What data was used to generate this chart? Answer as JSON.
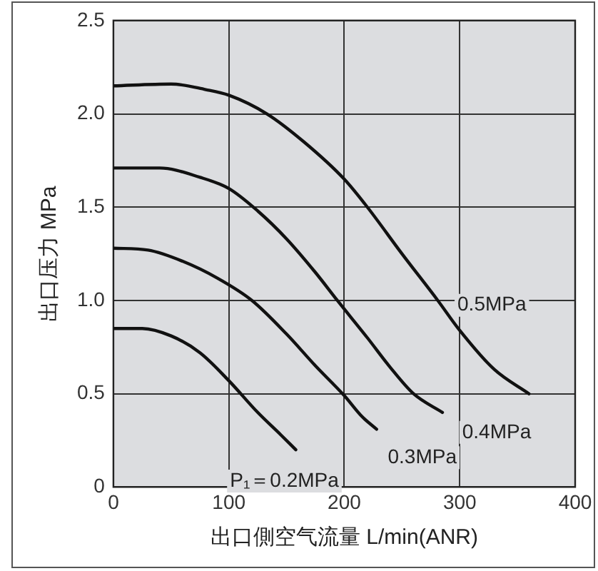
{
  "chart_data": {
    "type": "line",
    "xlabel": "出口側空气流量 L/min(ANR)",
    "ylabel": "出口压力 MPa",
    "xlim": [
      0,
      400
    ],
    "xticks": [
      0,
      100,
      200,
      300,
      400
    ],
    "ylim": [
      0,
      2.5
    ],
    "yticks": [
      0,
      0.5,
      {
        "value": 1,
        "label": "1.0"
      },
      1.5,
      {
        "value": 2,
        "label": "2.0"
      },
      2.5
    ],
    "grid": true,
    "legend": false,
    "marker": "none",
    "line_style": "solid",
    "series": [
      {
        "name": "P₁＝0.2MPa",
        "color": "#111111",
        "x": [
          0,
          25,
          50,
          75,
          100,
          125,
          145,
          158
        ],
        "values": [
          0.85,
          0.85,
          0.81,
          0.72,
          0.57,
          0.4,
          0.28,
          0.2
        ]
      },
      {
        "name": "0.3MPa",
        "color": "#111111",
        "x": [
          0,
          30,
          60,
          90,
          120,
          150,
          175,
          200,
          215,
          228
        ],
        "values": [
          1.28,
          1.27,
          1.21,
          1.12,
          1.0,
          0.82,
          0.65,
          0.49,
          0.38,
          0.31
        ]
      },
      {
        "name": "0.4MPa",
        "color": "#111111",
        "x": [
          0,
          40,
          75,
          100,
          125,
          150,
          175,
          194,
          220,
          240,
          260,
          285
        ],
        "values": [
          1.71,
          1.71,
          1.66,
          1.6,
          1.48,
          1.33,
          1.15,
          1.0,
          0.8,
          0.64,
          0.5,
          0.4
        ]
      },
      {
        "name": "0.5MPa",
        "color": "#111111",
        "x": [
          0,
          50,
          80,
          100,
          133,
          165,
          200,
          220,
          250,
          281,
          300,
          330,
          360
        ],
        "values": [
          2.15,
          2.16,
          2.13,
          2.1,
          2.0,
          1.85,
          1.65,
          1.5,
          1.25,
          1.0,
          0.84,
          0.63,
          0.5
        ]
      }
    ]
  }
}
